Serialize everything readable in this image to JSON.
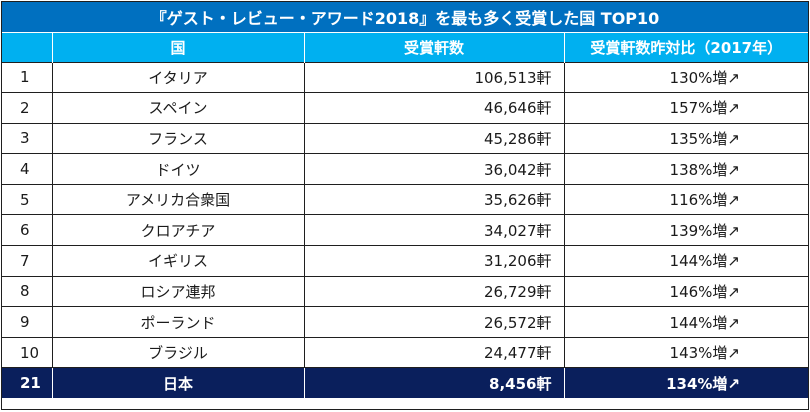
{
  "title": "『ゲスト・レビュー・アワード2018』を最も多く受賞した国 TOP10",
  "headers": [
    "",
    "国",
    "受賞軒数",
    "受賞軒数昨対比（2017年）"
  ],
  "rows": [
    {
      "rank": "1",
      "country": "イタリア",
      "count": "106,513軒",
      "rate": "130%増↗"
    },
    {
      "rank": "2",
      "country": "スペイン",
      "count": "46,646軒",
      "rate": "157%増↗"
    },
    {
      "rank": "3",
      "country": "フランス",
      "count": "45,286軒",
      "rate": "135%増↗"
    },
    {
      "rank": "4",
      "country": "ドイツ",
      "count": "36,042軒",
      "rate": "138%増↗"
    },
    {
      "rank": "5",
      "country": "アメリカ合衆国",
      "count": "35,626軒",
      "rate": "116%増↗"
    },
    {
      "rank": "6",
      "country": "クロアチア",
      "count": "34,027軒",
      "rate": "139%増↗"
    },
    {
      "rank": "7",
      "country": "イギリス",
      "count": "31,206軒",
      "rate": "144%増↗"
    },
    {
      "rank": "8",
      "country": "ロシア連邦",
      "count": "26,729軒",
      "rate": "146%増↗"
    },
    {
      "rank": "9",
      "country": "ポーランド",
      "count": "26,572軒",
      "rate": "144%増↗"
    },
    {
      "rank": "10",
      "country": "ブラジル",
      "count": "24,477軒",
      "rate": "143%増↗"
    }
  ],
  "japan": {
    "rank": "21",
    "country": "日本",
    "count": "8,456軒",
    "rate": "134%増↗"
  },
  "colors": {
    "title_bg": "#0070c0",
    "header_bg": "#00b0f0",
    "japan_bg": "#0a1f5c"
  }
}
